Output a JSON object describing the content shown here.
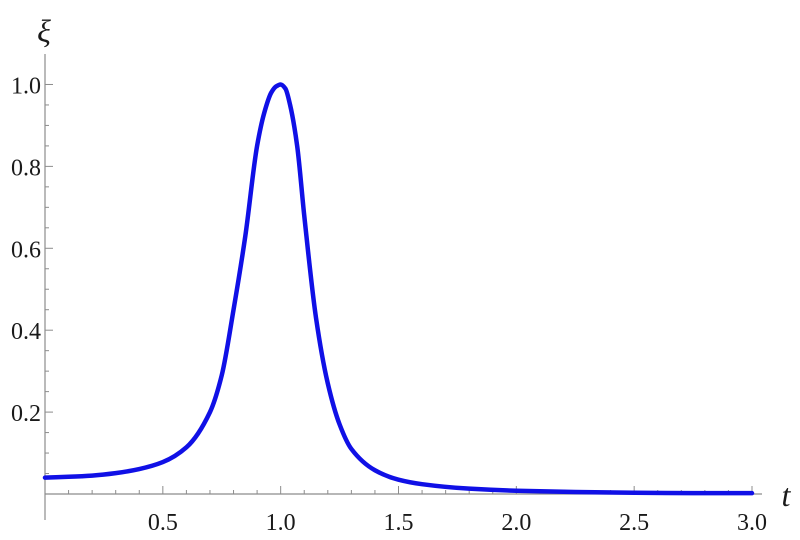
{
  "chart_data": {
    "type": "line",
    "title": "",
    "xlabel": "t",
    "ylabel": "ξ",
    "xlim": [
      0.0,
      3.0
    ],
    "ylim": [
      0.0,
      1.05
    ],
    "grid": false,
    "x_ticks": [
      {
        "value": 0.5,
        "label": "0.5"
      },
      {
        "value": 1.0,
        "label": "1.0"
      },
      {
        "value": 1.5,
        "label": "1.5"
      },
      {
        "value": 2.0,
        "label": "2.0"
      },
      {
        "value": 2.5,
        "label": "2.5"
      },
      {
        "value": 3.0,
        "label": "3.0"
      }
    ],
    "y_ticks": [
      {
        "value": 0.2,
        "label": "0.2"
      },
      {
        "value": 0.4,
        "label": "0.4"
      },
      {
        "value": 0.6,
        "label": "0.6"
      },
      {
        "value": 0.8,
        "label": "0.8"
      },
      {
        "value": 1.0,
        "label": "1.0"
      }
    ],
    "series": [
      {
        "color": "#1010e6",
        "x": [
          0.0,
          0.1,
          0.2,
          0.3,
          0.4,
          0.5,
          0.6,
          0.7,
          0.75,
          0.8,
          0.85,
          0.9,
          0.93,
          0.96,
          0.98,
          1.0,
          1.02,
          1.04,
          1.07,
          1.1,
          1.15,
          1.2,
          1.25,
          1.3,
          1.4,
          1.5,
          1.6,
          1.8,
          2.0,
          2.25,
          2.5,
          2.75,
          3.0
        ],
        "y": [
          0.04,
          0.042,
          0.045,
          0.051,
          0.061,
          0.078,
          0.114,
          0.2,
          0.29,
          0.45,
          0.63,
          0.85,
          0.93,
          0.98,
          0.995,
          1.0,
          0.99,
          0.95,
          0.85,
          0.68,
          0.43,
          0.27,
          0.17,
          0.11,
          0.058,
          0.035,
          0.024,
          0.013,
          0.008,
          0.005,
          0.003,
          0.002,
          0.002
        ]
      }
    ]
  }
}
